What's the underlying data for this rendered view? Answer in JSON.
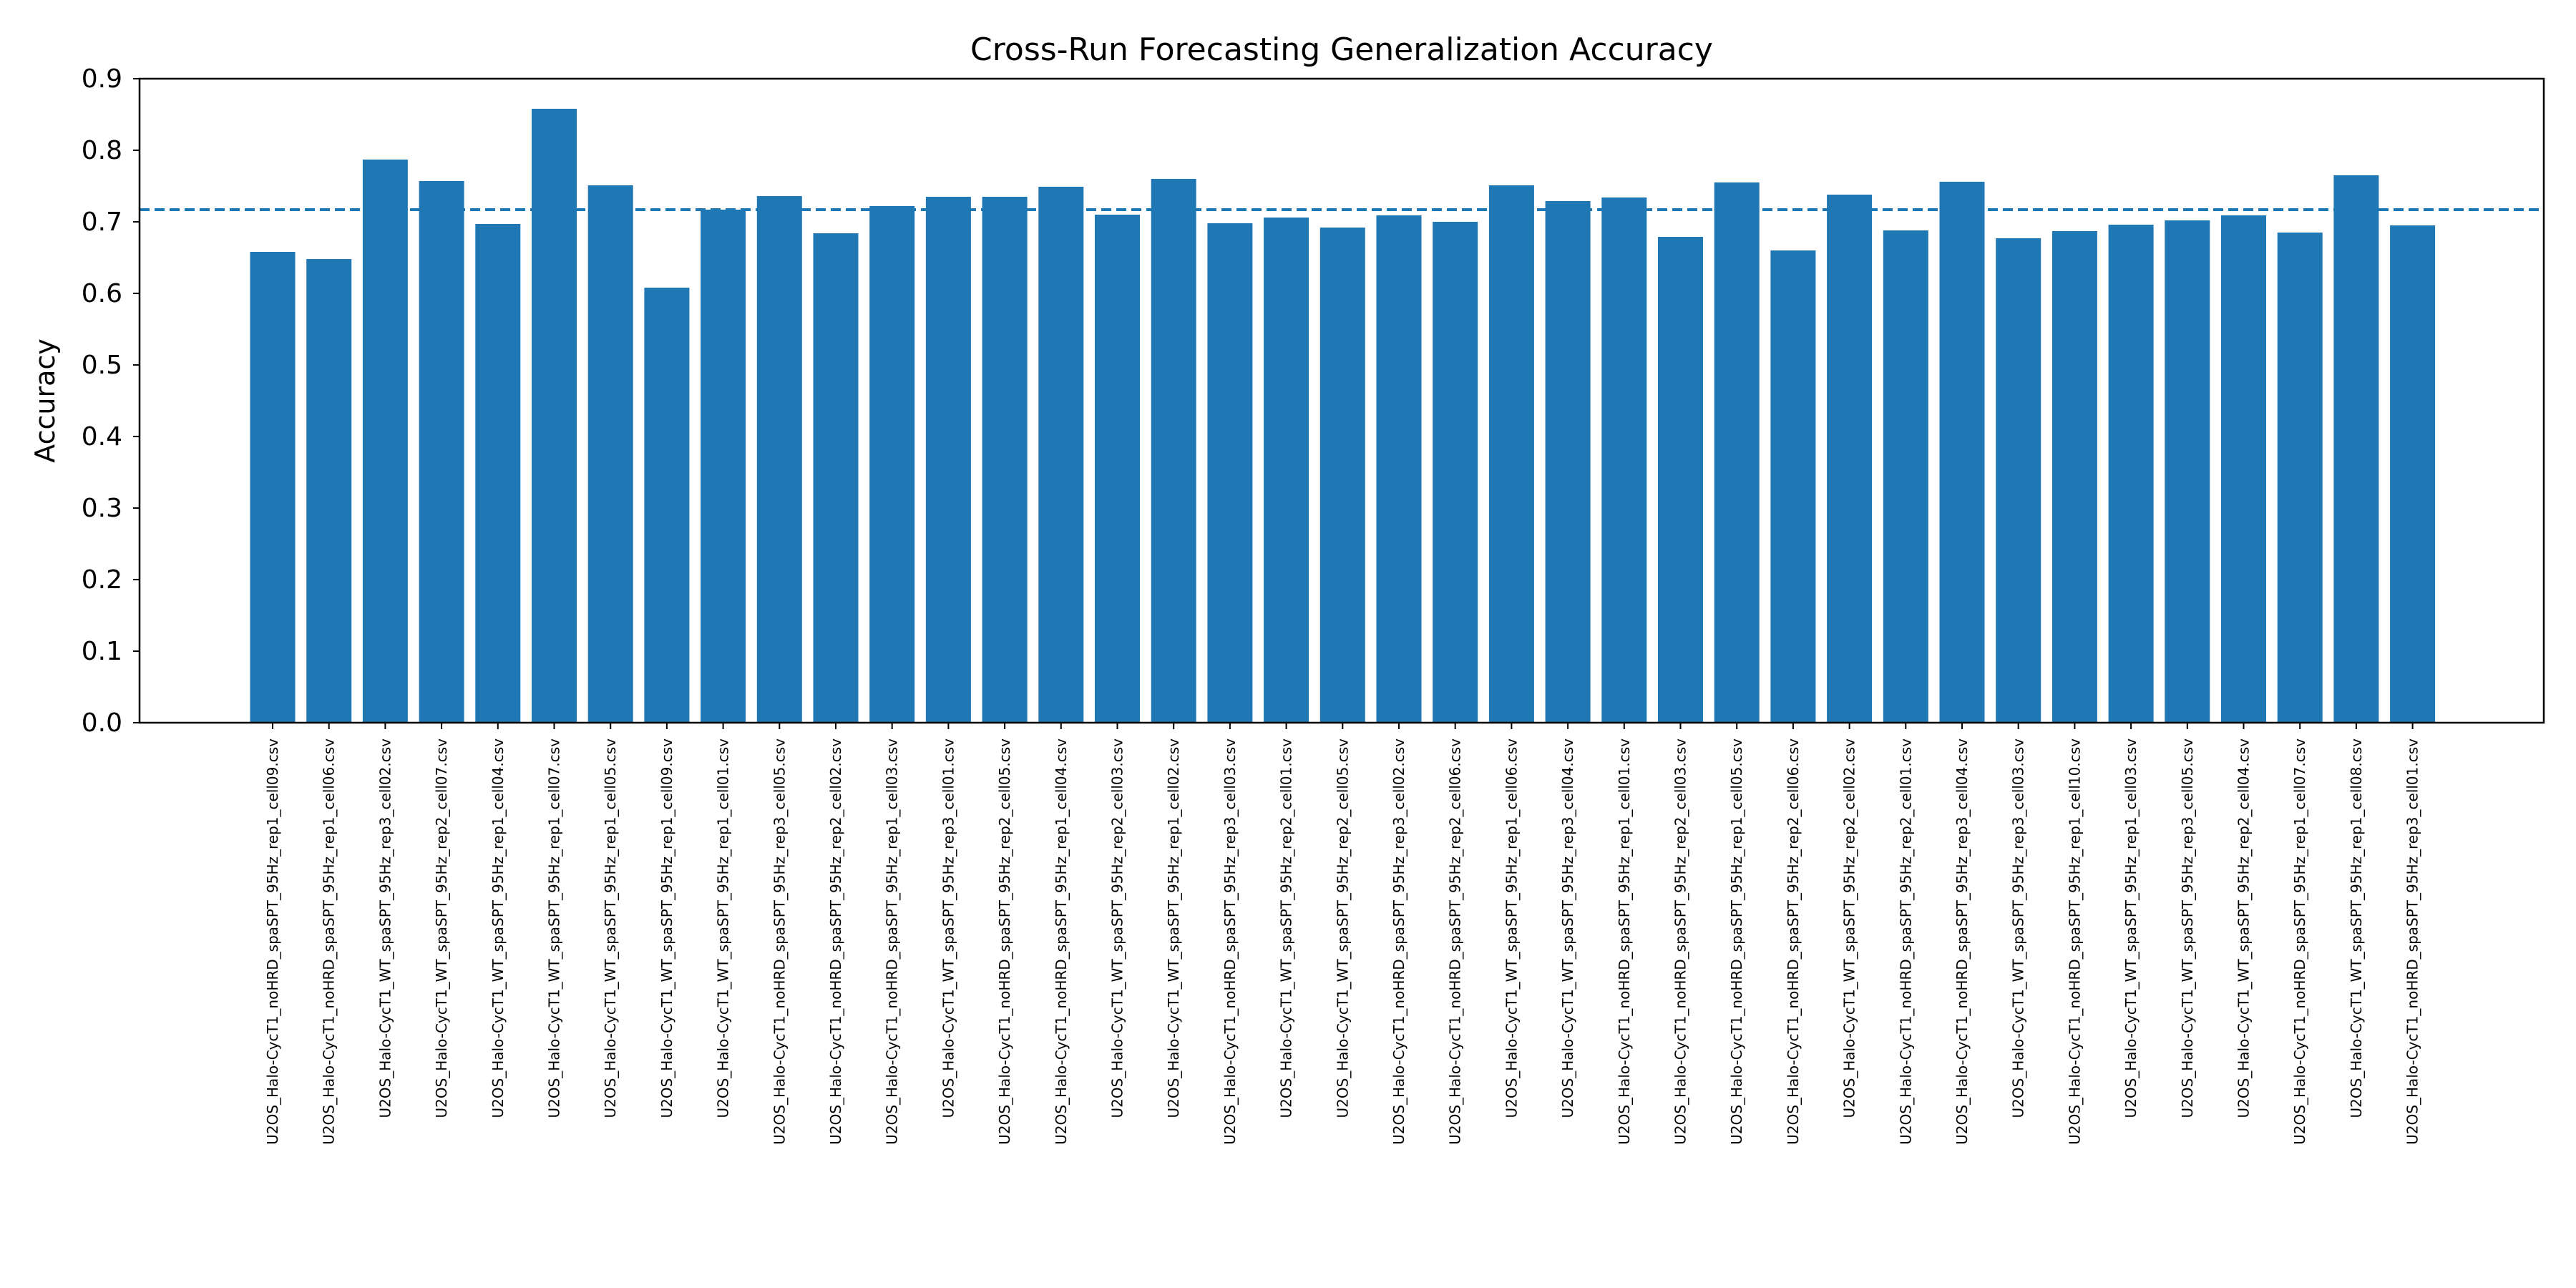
{
  "chart_data": {
    "type": "bar",
    "title": "Cross-Run Forecasting Generalization Accuracy",
    "xlabel": "",
    "ylabel": "Accuracy",
    "ylim": [
      0,
      0.9
    ],
    "yticks": [
      "0.0",
      "0.1",
      "0.2",
      "0.3",
      "0.4",
      "0.5",
      "0.6",
      "0.7",
      "0.8",
      "0.9"
    ],
    "grid": false,
    "bar_color": "#1f77b4",
    "mean_line": {
      "value": 0.717,
      "style": "dashed",
      "color": "#1f77b4"
    },
    "categories": [
      "U2OS_Halo-CycT1_noHRD_spaSPT_95Hz_rep1_cell09.csv",
      "U2OS_Halo-CycT1_noHRD_spaSPT_95Hz_rep1_cell06.csv",
      "U2OS_Halo-CycT1_WT_spaSPT_95Hz_rep3_cell02.csv",
      "U2OS_Halo-CycT1_WT_spaSPT_95Hz_rep2_cell07.csv",
      "U2OS_Halo-CycT1_WT_spaSPT_95Hz_rep1_cell04.csv",
      "U2OS_Halo-CycT1_WT_spaSPT_95Hz_rep1_cell07.csv",
      "U2OS_Halo-CycT1_WT_spaSPT_95Hz_rep1_cell05.csv",
      "U2OS_Halo-CycT1_WT_spaSPT_95Hz_rep1_cell09.csv",
      "U2OS_Halo-CycT1_WT_spaSPT_95Hz_rep1_cell01.csv",
      "U2OS_Halo-CycT1_noHRD_spaSPT_95Hz_rep3_cell05.csv",
      "U2OS_Halo-CycT1_noHRD_spaSPT_95Hz_rep2_cell02.csv",
      "U2OS_Halo-CycT1_noHRD_spaSPT_95Hz_rep1_cell03.csv",
      "U2OS_Halo-CycT1_WT_spaSPT_95Hz_rep3_cell01.csv",
      "U2OS_Halo-CycT1_noHRD_spaSPT_95Hz_rep2_cell05.csv",
      "U2OS_Halo-CycT1_noHRD_spaSPT_95Hz_rep1_cell04.csv",
      "U2OS_Halo-CycT1_WT_spaSPT_95Hz_rep2_cell03.csv",
      "U2OS_Halo-CycT1_WT_spaSPT_95Hz_rep1_cell02.csv",
      "U2OS_Halo-CycT1_noHRD_spaSPT_95Hz_rep3_cell03.csv",
      "U2OS_Halo-CycT1_WT_spaSPT_95Hz_rep2_cell01.csv",
      "U2OS_Halo-CycT1_WT_spaSPT_95Hz_rep2_cell05.csv",
      "U2OS_Halo-CycT1_noHRD_spaSPT_95Hz_rep3_cell02.csv",
      "U2OS_Halo-CycT1_noHRD_spaSPT_95Hz_rep2_cell06.csv",
      "U2OS_Halo-CycT1_WT_spaSPT_95Hz_rep1_cell06.csv",
      "U2OS_Halo-CycT1_WT_spaSPT_95Hz_rep3_cell04.csv",
      "U2OS_Halo-CycT1_noHRD_spaSPT_95Hz_rep1_cell01.csv",
      "U2OS_Halo-CycT1_noHRD_spaSPT_95Hz_rep2_cell03.csv",
      "U2OS_Halo-CycT1_noHRD_spaSPT_95Hz_rep1_cell05.csv",
      "U2OS_Halo-CycT1_noHRD_spaSPT_95Hz_rep2_cell06.csv",
      "U2OS_Halo-CycT1_WT_spaSPT_95Hz_rep2_cell02.csv",
      "U2OS_Halo-CycT1_noHRD_spaSPT_95Hz_rep2_cell01.csv",
      "U2OS_Halo-CycT1_noHRD_spaSPT_95Hz_rep3_cell04.csv",
      "U2OS_Halo-CycT1_WT_spaSPT_95Hz_rep3_cell03.csv",
      "U2OS_Halo-CycT1_noHRD_spaSPT_95Hz_rep1_cell10.csv",
      "U2OS_Halo-CycT1_WT_spaSPT_95Hz_rep1_cell03.csv",
      "U2OS_Halo-CycT1_WT_spaSPT_95Hz_rep3_cell05.csv",
      "U2OS_Halo-CycT1_WT_spaSPT_95Hz_rep2_cell04.csv",
      "U2OS_Halo-CycT1_noHRD_spaSPT_95Hz_rep1_cell07.csv",
      "U2OS_Halo-CycT1_WT_spaSPT_95Hz_rep1_cell08.csv",
      "U2OS_Halo-CycT1_noHRD_spaSPT_95Hz_rep3_cell01.csv"
    ],
    "values": [
      0.658,
      0.648,
      0.787,
      0.757,
      0.697,
      0.858,
      0.751,
      0.608,
      0.717,
      0.736,
      0.684,
      0.722,
      0.735,
      0.735,
      0.749,
      0.71,
      0.76,
      0.698,
      0.706,
      0.692,
      0.709,
      0.7,
      0.751,
      0.729,
      0.734,
      0.679,
      0.755,
      0.66,
      0.738,
      0.688,
      0.756,
      0.677,
      0.687,
      0.696,
      0.702,
      0.709,
      0.685,
      0.765,
      0.695
    ]
  }
}
